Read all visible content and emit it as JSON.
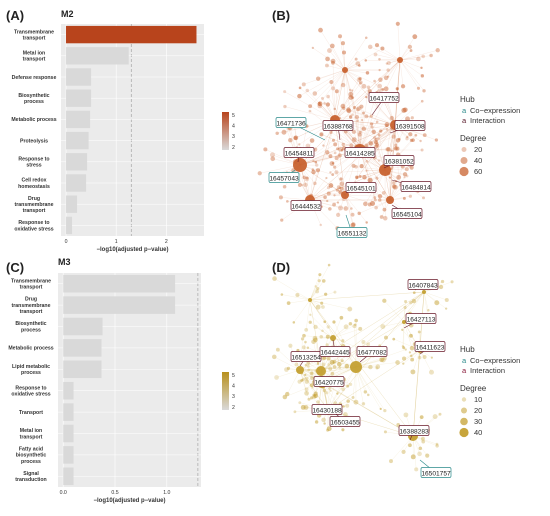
{
  "panels": {
    "A": "(A)",
    "B": "(B)",
    "C": "(C)",
    "D": "(D)"
  },
  "chart_data": [
    {
      "type": "bar",
      "panel": "(A)",
      "title": "M2",
      "orientation": "horizontal",
      "categories": [
        "Transmembrane transport",
        "Metal ion transport",
        "Defense response",
        "Biosynthetic process",
        "Metabolic process",
        "Proteolysis",
        "Response to stress",
        "Cell redox homeostasis",
        "Drug transmembrane transport",
        "Response to oxidative stress"
      ],
      "values": [
        2.6,
        1.25,
        0.5,
        0.5,
        0.48,
        0.45,
        0.42,
        0.4,
        0.22,
        0.12
      ],
      "fill_values": [
        5,
        2,
        2,
        2,
        2,
        2,
        2,
        2,
        2,
        2
      ],
      "xlim": [
        -0.1,
        2.75
      ],
      "xticks": [
        "0",
        "1",
        "2"
      ],
      "xlabel": "−log10(adjusted p−value)",
      "threshold": 1.3,
      "colorbar": {
        "ticks": [
          "5",
          "4",
          "3",
          "2"
        ],
        "low": "#d9d9d9",
        "high": "#b8441c"
      }
    },
    {
      "type": "bar",
      "panel": "(C)",
      "title": "M3",
      "orientation": "horizontal",
      "categories": [
        "Transmembrane transport",
        "Drug transmembrane transport",
        "Biosynthetic process",
        "Metabolic process",
        "Lipid metabolic process",
        "Response to oxidative stress",
        "Transport",
        "Metal ion transport",
        "Fatty acid biosynthetic process",
        "Signal transduction"
      ],
      "values": [
        1.08,
        1.08,
        0.38,
        0.37,
        0.37,
        0.1,
        0.1,
        0.1,
        0.1,
        0.1
      ],
      "fill_values": [
        2,
        2,
        2,
        2,
        2,
        2,
        2,
        2,
        2,
        2
      ],
      "xlim": [
        -0.05,
        1.33
      ],
      "xticks": [
        "0.0",
        "0.5",
        "1.0"
      ],
      "xlabel": "−log10(adjusted p−value)",
      "threshold": 1.3,
      "colorbar": {
        "ticks": [
          "5",
          "4",
          "3",
          "2"
        ],
        "low": "#d9d9d9",
        "high": "#b8901c"
      }
    }
  ],
  "network_B": {
    "panel": "(B)",
    "color": "#c8622f",
    "legend": {
      "hub_title": "Hub",
      "hub_items": [
        {
          "mark": "a",
          "label": "Co−expression",
          "color": "#2a8a8a"
        },
        {
          "mark": "a",
          "label": "Interaction",
          "color": "#5a1a2a"
        }
      ],
      "degree_title": "Degree",
      "degree_values": [
        "20",
        "40",
        "60"
      ]
    },
    "labels": [
      {
        "text": "16417752",
        "hub": "interaction"
      },
      {
        "text": "16471736",
        "hub": "co-expression"
      },
      {
        "text": "16388768",
        "hub": "interaction"
      },
      {
        "text": "16391508",
        "hub": "interaction"
      },
      {
        "text": "16414285",
        "hub": "interaction"
      },
      {
        "text": "16454811",
        "hub": "interaction"
      },
      {
        "text": "16381052",
        "hub": "interaction"
      },
      {
        "text": "16457043",
        "hub": "co-expression"
      },
      {
        "text": "16545101",
        "hub": "interaction"
      },
      {
        "text": "16484814",
        "hub": "interaction"
      },
      {
        "text": "16444532",
        "hub": "interaction"
      },
      {
        "text": "16545104",
        "hub": "interaction"
      },
      {
        "text": "16551132",
        "hub": "co-expression"
      }
    ]
  },
  "network_D": {
    "panel": "(D)",
    "color": "#c4a032",
    "legend": {
      "hub_title": "Hub",
      "hub_items": [
        {
          "mark": "a",
          "label": "Co−expression",
          "color": "#2a8a8a"
        },
        {
          "mark": "a",
          "label": "Interaction",
          "color": "#8a1a3a"
        }
      ],
      "degree_title": "Degree",
      "degree_values": [
        "10",
        "20",
        "30",
        "40"
      ]
    },
    "labels": [
      {
        "text": "16407843",
        "hub": "interaction"
      },
      {
        "text": "16427113",
        "hub": "interaction"
      },
      {
        "text": "16411623",
        "hub": "interaction"
      },
      {
        "text": "16513254",
        "hub": "interaction"
      },
      {
        "text": "16442445",
        "hub": "interaction"
      },
      {
        "text": "16477082",
        "hub": "interaction"
      },
      {
        "text": "16420775",
        "hub": "interaction"
      },
      {
        "text": "16430188",
        "hub": "interaction"
      },
      {
        "text": "16503455",
        "hub": "interaction"
      },
      {
        "text": "16388283",
        "hub": "interaction"
      },
      {
        "text": "16501757",
        "hub": "co-expression"
      }
    ]
  }
}
